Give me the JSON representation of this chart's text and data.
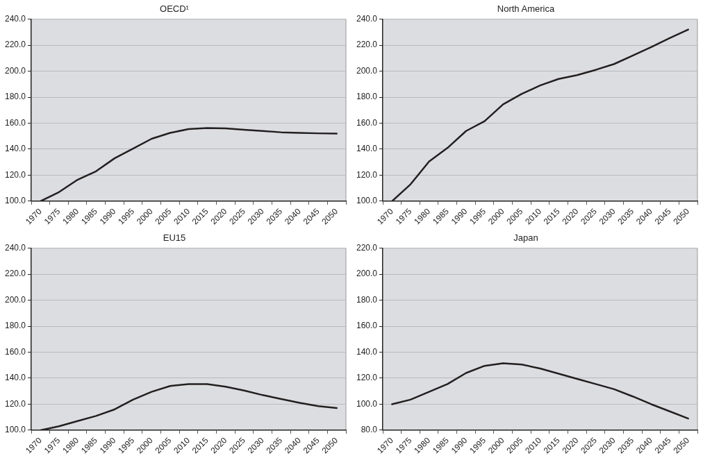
{
  "chart_data": [
    {
      "type": "line",
      "title": "OECD¹",
      "categories": [
        "1970",
        "1975",
        "1980",
        "1985",
        "1990",
        "1995",
        "2000",
        "2005",
        "2010",
        "2015",
        "2020",
        "2025",
        "2030",
        "2035",
        "2040",
        "2045",
        "2050"
      ],
      "series": [
        {
          "color": "#231f20",
          "values": [
            100,
            107,
            116.5,
            123,
            133,
            140.5,
            148,
            152.5,
            155.5,
            156.3,
            156,
            155,
            154,
            153,
            152.5,
            152.2,
            152
          ]
        }
      ],
      "ylim": [
        100,
        240
      ],
      "yticks": [
        {
          "value": 100,
          "label": "100.0"
        },
        {
          "value": 120,
          "label": "120.0"
        },
        {
          "value": 140,
          "label": "140.0"
        },
        {
          "value": 160,
          "label": "160.0"
        },
        {
          "value": 180,
          "label": "180.0"
        },
        {
          "value": 200,
          "label": "200.0"
        },
        {
          "value": 220,
          "label": "220.0"
        },
        {
          "value": 240,
          "label": "240.0"
        }
      ],
      "grid": "y",
      "legend": false,
      "marker": "none",
      "line_style": "solid"
    },
    {
      "type": "line",
      "title": "North America",
      "categories": [
        "1970",
        "1975",
        "1980",
        "1985",
        "1990",
        "1995",
        "2000",
        "2005",
        "2010",
        "2015",
        "2020",
        "2025",
        "2030",
        "2035",
        "2040",
        "2045",
        "2050"
      ],
      "series": [
        {
          "color": "#231f20",
          "values": [
            100,
            113,
            130.5,
            141,
            154,
            161.5,
            174.5,
            182.5,
            189,
            194,
            197,
            201,
            205.5,
            212,
            218.5,
            225.5,
            232
          ]
        }
      ],
      "ylim": [
        100,
        240
      ],
      "yticks": [
        {
          "value": 100,
          "label": "100.0"
        },
        {
          "value": 120,
          "label": "120.0"
        },
        {
          "value": 140,
          "label": "140.0"
        },
        {
          "value": 160,
          "label": "160.0"
        },
        {
          "value": 180,
          "label": "180.0"
        },
        {
          "value": 200,
          "label": "200.0"
        },
        {
          "value": 220,
          "label": "220.0"
        },
        {
          "value": 240,
          "label": "240.0"
        }
      ],
      "grid": "y",
      "legend": false,
      "marker": "none",
      "line_style": "solid"
    },
    {
      "type": "line",
      "title": "EU15",
      "categories": [
        "1970",
        "1975",
        "1980",
        "1985",
        "1990",
        "1995",
        "2000",
        "2005",
        "2010",
        "2015",
        "2020",
        "2025",
        "2030",
        "2035",
        "2040",
        "2045",
        "2050"
      ],
      "series": [
        {
          "color": "#231f20",
          "values": [
            100,
            103,
            107,
            111,
            116,
            123.5,
            129.5,
            134,
            135.5,
            135.5,
            133.5,
            130.5,
            127,
            124,
            121,
            118.5,
            117
          ]
        }
      ],
      "ylim": [
        100,
        240
      ],
      "yticks": [
        {
          "value": 100,
          "label": "100.0"
        },
        {
          "value": 120,
          "label": "120.0"
        },
        {
          "value": 140,
          "label": "140.0"
        },
        {
          "value": 160,
          "label": "160.0"
        },
        {
          "value": 180,
          "label": "180.0"
        },
        {
          "value": 200,
          "label": "200.0"
        },
        {
          "value": 220,
          "label": "220.0"
        },
        {
          "value": 240,
          "label": "240.0"
        }
      ],
      "grid": "y",
      "legend": false,
      "marker": "none",
      "line_style": "solid"
    },
    {
      "type": "line",
      "title": "Japan",
      "categories": [
        "1970",
        "1975",
        "1980",
        "1985",
        "1990",
        "1995",
        "2000",
        "2005",
        "2010",
        "2015",
        "2020",
        "2025",
        "2030",
        "2035",
        "2040",
        "2045",
        "2050"
      ],
      "series": [
        {
          "color": "#231f20",
          "values": [
            100,
            103.5,
            109.5,
            115.5,
            124,
            129.5,
            131.5,
            130.5,
            127.5,
            123.5,
            119.5,
            115.5,
            111.5,
            106,
            100,
            94.5,
            89
          ]
        }
      ],
      "ylim": [
        80,
        220
      ],
      "yticks": [
        {
          "value": 80,
          "label": "80.0"
        },
        {
          "value": 100,
          "label": "100.0"
        },
        {
          "value": 120,
          "label": "120.0"
        },
        {
          "value": 140,
          "label": "140.0"
        },
        {
          "value": 160,
          "label": "160.0"
        },
        {
          "value": 180,
          "label": "180.0"
        },
        {
          "value": 200,
          "label": "200.0"
        },
        {
          "value": 220,
          "label": "220.0"
        }
      ],
      "grid": "y",
      "legend": false,
      "marker": "none",
      "line_style": "solid"
    }
  ]
}
